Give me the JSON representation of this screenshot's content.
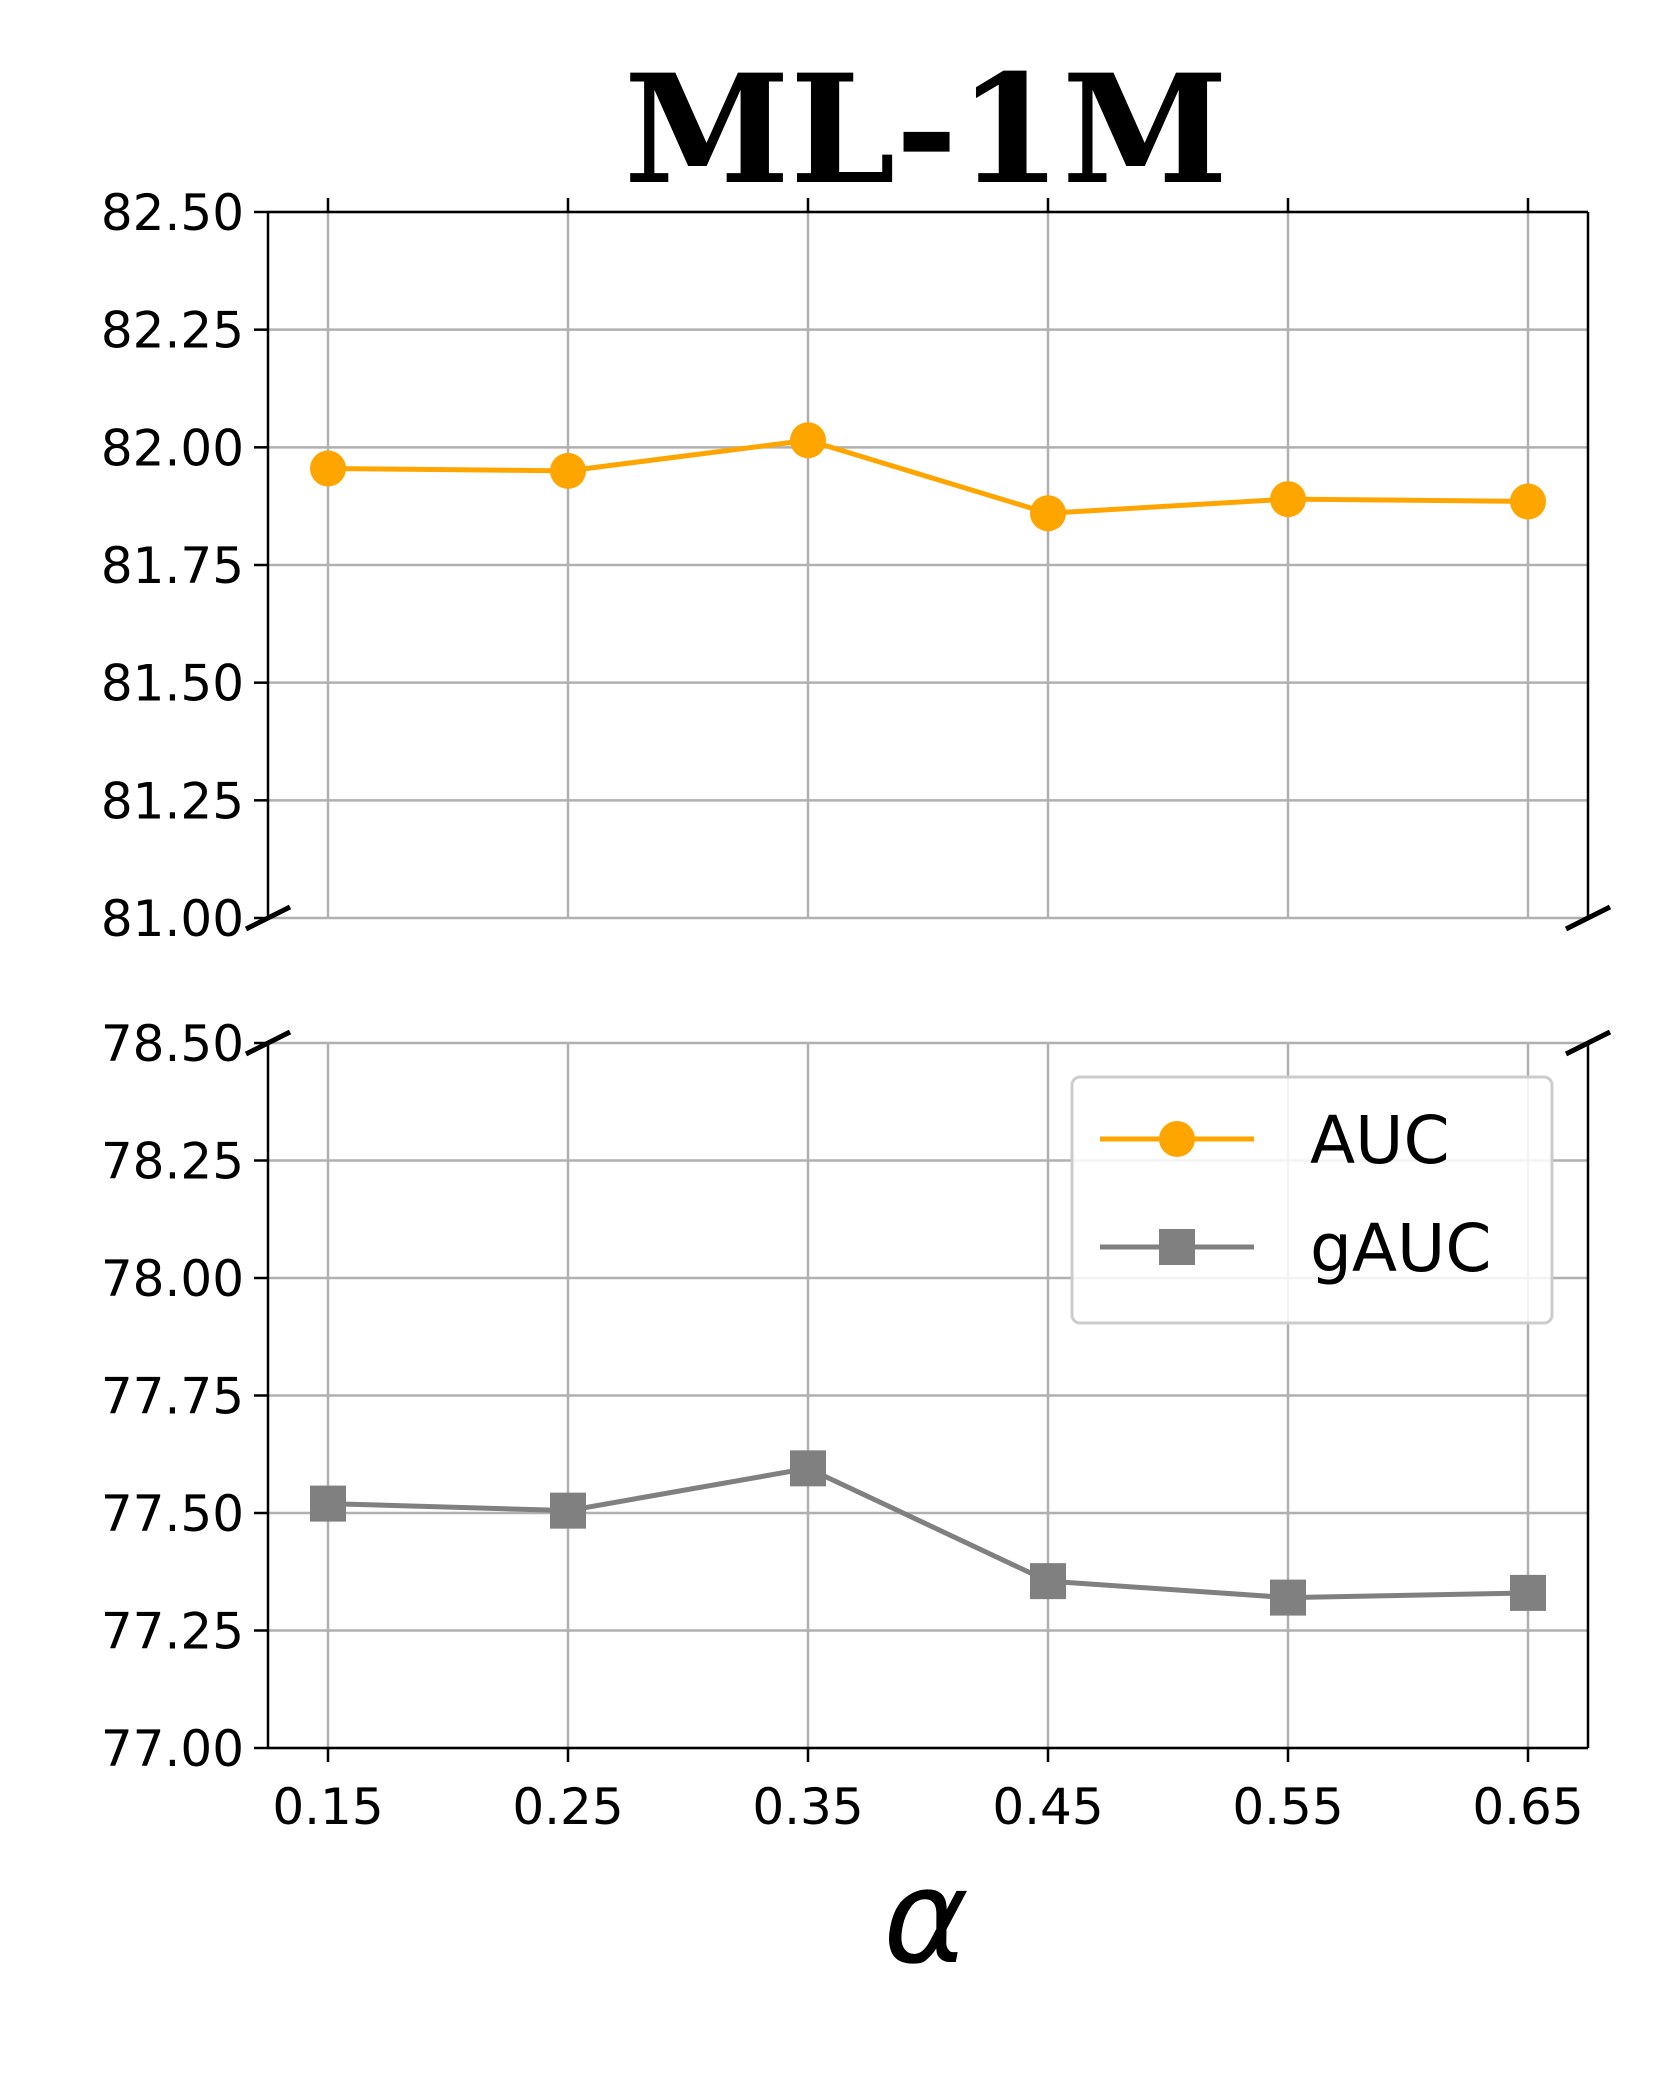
{
  "chart_data": {
    "type": "line",
    "title": "ML-1M",
    "xlabel": "α",
    "x": [
      0.15,
      0.25,
      0.35,
      0.45,
      0.55,
      0.65
    ],
    "x_tick_labels": [
      "0.15",
      "0.25",
      "0.35",
      "0.45",
      "0.55",
      "0.65"
    ],
    "broken_y_axis": true,
    "panels": [
      {
        "ylim": [
          81.0,
          82.5
        ],
        "y_ticks": [
          81.0,
          81.25,
          81.5,
          81.75,
          82.0,
          82.25,
          82.5
        ],
        "y_tick_labels": [
          "81.00",
          "81.25",
          "81.50",
          "81.75",
          "82.00",
          "82.25",
          "82.50"
        ]
      },
      {
        "ylim": [
          77.0,
          78.5
        ],
        "y_ticks": [
          77.0,
          77.25,
          77.5,
          77.75,
          78.0,
          78.25,
          78.5
        ],
        "y_tick_labels": [
          "77.00",
          "77.25",
          "77.50",
          "77.75",
          "78.00",
          "78.25",
          "78.50"
        ]
      }
    ],
    "series": [
      {
        "name": "AUC",
        "marker": "circle",
        "color": "#FFA500",
        "panel": 0,
        "values": [
          81.955,
          81.95,
          82.015,
          81.86,
          81.89,
          81.885
        ]
      },
      {
        "name": "gAUC",
        "marker": "square",
        "color": "#808080",
        "panel": 1,
        "values": [
          77.52,
          77.505,
          77.595,
          77.355,
          77.32,
          77.33
        ]
      }
    ],
    "grid": true,
    "legend_position": "upper-right of lower panel"
  }
}
